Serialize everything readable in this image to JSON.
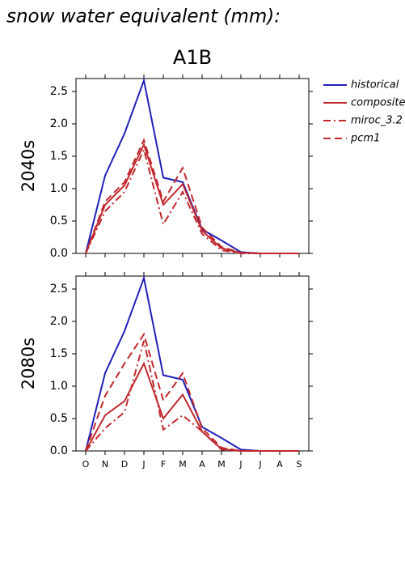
{
  "title": "snow water equivalent (mm):",
  "subtitle": "A1B",
  "chart_data": [
    {
      "type": "line",
      "ylabel": "2040s",
      "ylim": [
        0,
        2.7
      ],
      "yticks": [
        {
          "value": 0,
          "label": "0.0"
        },
        0.5,
        {
          "value": 1,
          "label": "1.0"
        },
        1.5,
        {
          "value": 2,
          "label": "2.0"
        },
        2.5
      ],
      "series": [
        {
          "name": "historical",
          "color": "#2020b8",
          "dash": "solid",
          "values": [
            0,
            1.2,
            1.85,
            2.67,
            1.17,
            1.1,
            0.37,
            0.2,
            0.02,
            0,
            0,
            0
          ]
        },
        {
          "name": "composite",
          "color": "#c0282d",
          "dash": "solid",
          "values": [
            0,
            0.75,
            1.05,
            1.68,
            0.75,
            1.07,
            0.35,
            0.08,
            0.01,
            0,
            0,
            0
          ]
        },
        {
          "name": "miroc_3.2",
          "color": "#c0282d",
          "dash": "dashdot",
          "values": [
            0,
            0.65,
            0.95,
            1.6,
            0.45,
            0.95,
            0.3,
            0.05,
            0,
            0,
            0,
            0
          ]
        },
        {
          "name": "pcm1",
          "color": "#c0282d",
          "dash": "dash",
          "values": [
            0,
            0.8,
            1.1,
            1.75,
            0.8,
            1.32,
            0.4,
            0.1,
            0.01,
            0,
            0,
            0
          ]
        }
      ]
    },
    {
      "type": "line",
      "ylabel": "2080s",
      "ylim": [
        0,
        2.7
      ],
      "categories": [
        "O",
        "N",
        "D",
        "J",
        "F",
        "M",
        "A",
        "M",
        "J",
        "J",
        "A",
        "S"
      ],
      "yticks": [
        {
          "value": 0,
          "label": "0.0"
        },
        0.5,
        {
          "value": 1,
          "label": "1.0"
        },
        1.5,
        {
          "value": 2,
          "label": "2.0"
        },
        2.5
      ],
      "series": [
        {
          "color": "#2020b8",
          "dash": "solid",
          "values": [
            0,
            1.2,
            1.85,
            2.67,
            1.17,
            1.1,
            0.37,
            0.2,
            0.02,
            0,
            0,
            0
          ]
        },
        {
          "color": "#c0282d",
          "dash": "solid",
          "values": [
            0,
            0.55,
            0.77,
            1.35,
            0.5,
            0.87,
            0.3,
            0.03,
            0,
            0,
            0,
            0
          ]
        },
        {
          "color": "#c0282d",
          "dash": "dashdot",
          "values": [
            0,
            0.35,
            0.6,
            1.7,
            0.33,
            0.55,
            0.3,
            0.02,
            0,
            0,
            0,
            0
          ]
        },
        {
          "color": "#c0282d",
          "dash": "dash",
          "values": [
            0,
            0.85,
            1.35,
            1.8,
            0.78,
            1.2,
            0.35,
            0.05,
            0,
            0,
            0,
            0
          ]
        }
      ]
    }
  ]
}
